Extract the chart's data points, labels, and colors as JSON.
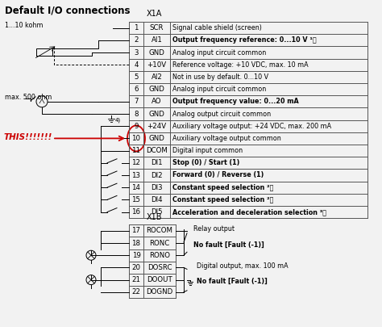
{
  "title": "Default I/O connections",
  "bg_color": "#f2f2f2",
  "x1a_label": "X1A",
  "x1b_label": "X1B",
  "x1a_rows": [
    {
      "num": "1",
      "code": "SCR",
      "desc": "Signal cable shield (screen)",
      "bold": false
    },
    {
      "num": "2",
      "code": "AI1",
      "desc": "Output frequency reference: 0...10 V ¹⧯",
      "bold": true
    },
    {
      "num": "3",
      "code": "GND",
      "desc": "Analog input circuit common",
      "bold": false
    },
    {
      "num": "4",
      "code": "+10V",
      "desc": "Reference voltage: +10 VDC, max. 10 mA",
      "bold": false
    },
    {
      "num": "5",
      "code": "AI2",
      "desc": "Not in use by default. 0...10 V",
      "bold": false
    },
    {
      "num": "6",
      "code": "GND",
      "desc": "Analog input circuit common",
      "bold": false
    },
    {
      "num": "7",
      "code": "AO",
      "desc": "Output frequency value: 0...20 mA",
      "bold": true
    },
    {
      "num": "8",
      "code": "GND",
      "desc": "Analog output circuit common",
      "bold": false
    },
    {
      "num": "9",
      "code": "+24V",
      "desc": "Auxiliary voltage output: +24 VDC, max. 200 mA",
      "bold": false
    },
    {
      "num": "10",
      "code": "GND",
      "desc": "Auxiliary voltage output common",
      "bold": false
    },
    {
      "num": "11",
      "code": "DCOM",
      "desc": "Digital input common",
      "bold": false
    },
    {
      "num": "12",
      "code": "DI1",
      "desc": "Stop (0) / Start (1)",
      "bold": true
    },
    {
      "num": "13",
      "code": "DI2",
      "desc": "Forward (0) / Reverse (1)",
      "bold": true
    },
    {
      "num": "14",
      "code": "DI3",
      "desc": "Constant speed selection ²⧯",
      "bold": true
    },
    {
      "num": "15",
      "code": "DI4",
      "desc": "Constant speed selection ²⧯",
      "bold": true
    },
    {
      "num": "16",
      "code": "DI5",
      "desc": "Acceleration and deceleration selection ³⧯",
      "bold": true
    }
  ],
  "x1b_rows": [
    {
      "num": "17",
      "code": "ROCOM"
    },
    {
      "num": "18",
      "code": "RONC"
    },
    {
      "num": "19",
      "code": "RONO"
    },
    {
      "num": "20",
      "code": "DOSRC"
    },
    {
      "num": "21",
      "code": "DOOUT"
    },
    {
      "num": "22",
      "code": "DOGND"
    }
  ],
  "relay_label": "Relay output",
  "relay_fault": "No fault [Fault (-1)]",
  "digital_label": "Digital output, max. 100 mA",
  "digital_fault": "No fault [Fault (-1)]",
  "this_label": "THIS!!!!!!!",
  "this_color": "#cc0000",
  "left_label1": "1...10 kohm",
  "left_label2": "max. 500 ohm",
  "anno4": "4)"
}
